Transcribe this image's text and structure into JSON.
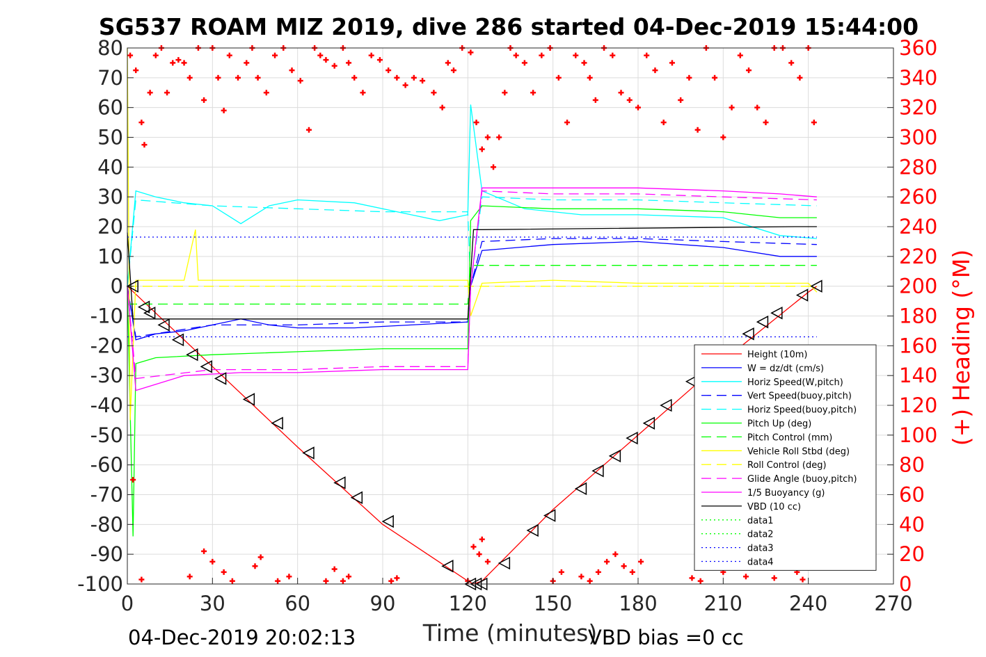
{
  "chart_data": {
    "type": "line",
    "title": "SG537 ROAM MIZ 2019, dive 286 started 04-Dec-2019 15:44:00",
    "xlabel": "Time (minutes)",
    "ylabel_right": "(+) Heading (°M)",
    "footer_left": "04-Dec-2019 20:02:13",
    "footer_right": "VBD bias =0 cc",
    "xlim": [
      0,
      270
    ],
    "ylim": [
      -100,
      80
    ],
    "ylim_right": [
      0,
      360
    ],
    "x_ticks": [
      "0",
      "30",
      "60",
      "90",
      "120",
      "150",
      "180",
      "210",
      "240",
      "270"
    ],
    "y_ticks": [
      "80",
      "70",
      "60",
      "50",
      "40",
      "30",
      "20",
      "10",
      "0",
      "-10",
      "-20",
      "-30",
      "-40",
      "-50",
      "-60",
      "-70",
      "-80",
      "-90",
      "-100"
    ],
    "y_ticks_right": [
      "360",
      "340",
      "320",
      "300",
      "280",
      "260",
      "240",
      "220",
      "200",
      "180",
      "160",
      "140",
      "120",
      "100",
      "80",
      "60",
      "40",
      "20",
      "0"
    ],
    "grid": true,
    "legend_position": "lower-right (inside)",
    "series": [
      {
        "name": "Height (10m)",
        "color": "#ff0000",
        "style": "solid",
        "x": [
          0,
          30,
          60,
          90,
          120,
          122,
          125,
          150,
          180,
          210,
          240,
          243
        ],
        "y": [
          0,
          -27,
          -54,
          -80,
          -99,
          -100,
          -99,
          -75,
          -50,
          -25,
          -2,
          0
        ]
      },
      {
        "name": "W = dz/dt (cm/s)",
        "color": "#0000ff",
        "style": "solid",
        "x": [
          0,
          3,
          10,
          20,
          30,
          40,
          50,
          60,
          80,
          100,
          120,
          121,
          125,
          150,
          180,
          210,
          230,
          243
        ],
        "y": [
          0,
          -18,
          -16,
          -15,
          -13,
          -11,
          -13,
          -14,
          -14,
          -13,
          -12,
          0,
          12,
          14,
          15,
          13,
          10,
          10
        ]
      },
      {
        "name": "Horiz Speed(W,pitch)",
        "color": "#00ffff",
        "style": "solid",
        "x": [
          0,
          3,
          10,
          20,
          30,
          40,
          50,
          60,
          80,
          100,
          110,
          120,
          121,
          125,
          140,
          160,
          180,
          210,
          230,
          243
        ],
        "y": [
          0,
          32,
          30,
          28,
          27,
          21,
          27,
          29,
          28,
          24,
          22,
          24,
          61,
          32,
          26,
          24,
          24,
          23,
          17,
          16
        ]
      },
      {
        "name": "Vert Speed(buoy,pitch)",
        "color": "#0000ff",
        "style": "dashed",
        "x": [
          0,
          3,
          30,
          60,
          90,
          120,
          121,
          125,
          150,
          180,
          210,
          243
        ],
        "y": [
          0,
          -17,
          -13,
          -13,
          -12,
          -12,
          0,
          15,
          16,
          16,
          15,
          14
        ]
      },
      {
        "name": "Horiz Speed(buoy,pitch)",
        "color": "#00ffff",
        "style": "dashed",
        "x": [
          0,
          3,
          30,
          60,
          90,
          120,
          121,
          125,
          150,
          180,
          210,
          243
        ],
        "y": [
          0,
          29,
          27,
          26,
          25,
          25,
          0,
          30,
          29,
          29,
          28,
          27
        ]
      },
      {
        "name": "Pitch Up (deg)",
        "color": "#00ff00",
        "style": "solid",
        "x": [
          0,
          2,
          3,
          10,
          30,
          60,
          90,
          120,
          121,
          125,
          150,
          180,
          210,
          230,
          243
        ],
        "y": [
          0,
          -84,
          -26,
          -24,
          -23,
          -22,
          -21,
          -21,
          22,
          27,
          26,
          26,
          25,
          23,
          23
        ]
      },
      {
        "name": "Pitch Control (mm)",
        "color": "#00ff00",
        "style": "dashed",
        "x": [
          0,
          120,
          121,
          243
        ],
        "y": [
          -6,
          -6,
          7,
          7
        ]
      },
      {
        "name": "Vehicle Roll Stbd (deg)",
        "color": "#ffff00",
        "style": "solid",
        "x": [
          0,
          1,
          3,
          5,
          20,
          24,
          25,
          40,
          60,
          90,
          120,
          121,
          125,
          150,
          180,
          210,
          240,
          243
        ],
        "y": [
          80,
          -45,
          2,
          2,
          2,
          19,
          2,
          2,
          2,
          2,
          2,
          -10,
          1,
          2,
          1,
          1,
          1,
          -2
        ]
      },
      {
        "name": "Roll Control (deg)",
        "color": "#ffff00",
        "style": "dashed",
        "x": [
          0,
          243
        ],
        "y": [
          0,
          0
        ]
      },
      {
        "name": "Glide Angle (buoy,pitch)",
        "color": "#ff00ff",
        "style": "dashed",
        "x": [
          0,
          3,
          30,
          60,
          90,
          120,
          121,
          125,
          150,
          180,
          210,
          243
        ],
        "y": [
          0,
          -31,
          -28,
          -28,
          -27,
          -27,
          0,
          32,
          31,
          31,
          30,
          29
        ]
      },
      {
        "name": "1/5 Buoyancy (g)",
        "color": "#ff00ff",
        "style": "solid",
        "x": [
          0,
          3,
          20,
          40,
          60,
          90,
          120,
          121,
          125,
          150,
          180,
          210,
          230,
          243
        ],
        "y": [
          0,
          -35,
          -30,
          -29,
          -29,
          -28,
          -28,
          0,
          33,
          33,
          33,
          32,
          31,
          30
        ]
      },
      {
        "name": "VBD (10 cc)",
        "color": "#000000",
        "style": "solid",
        "x": [
          0,
          2,
          120,
          122,
          125,
          235,
          243
        ],
        "y": [
          18,
          -11,
          -11,
          19,
          19,
          20,
          20
        ]
      },
      {
        "name": "data1",
        "color": "#00ff00",
        "style": "dotted",
        "x": [],
        "y": []
      },
      {
        "name": "data2",
        "color": "#00ff00",
        "style": "dotted",
        "x": [],
        "y": []
      },
      {
        "name": "data3",
        "color": "#0000ff",
        "style": "dotted",
        "x": [
          0,
          243
        ],
        "y": [
          16.5,
          16.5
        ]
      },
      {
        "name": "data4",
        "color": "#0000ff",
        "style": "dotted",
        "x": [
          0,
          243
        ],
        "y": [
          -17,
          -17
        ]
      }
    ],
    "heading": {
      "name": "Heading",
      "axis": "right",
      "color": "#ff0000",
      "marker": "+",
      "x": [
        1,
        3,
        5,
        6,
        8,
        10,
        12,
        14,
        16,
        18,
        20,
        22,
        25,
        27,
        30,
        32,
        34,
        36,
        39,
        42,
        44,
        46,
        49,
        52,
        55,
        58,
        61,
        64,
        66,
        68,
        70,
        73,
        76,
        78,
        80,
        83,
        86,
        89,
        92,
        95,
        98,
        101,
        104,
        108,
        111,
        113,
        115,
        118,
        121,
        123,
        125,
        127,
        129,
        131,
        133,
        135,
        137,
        140,
        143,
        146,
        149,
        152,
        155,
        158,
        161,
        163,
        165,
        168,
        171,
        174,
        177,
        180,
        183,
        186,
        189,
        192,
        195,
        198,
        201,
        204,
        207,
        210,
        213,
        216,
        219,
        222,
        225,
        228,
        231,
        234,
        237,
        240,
        242
      ],
      "y": [
        355,
        345,
        310,
        295,
        330,
        355,
        360,
        330,
        350,
        352,
        350,
        340,
        360,
        325,
        360,
        340,
        318,
        355,
        340,
        350,
        360,
        340,
        330,
        355,
        360,
        345,
        338,
        305,
        360,
        355,
        352,
        348,
        360,
        350,
        340,
        330,
        355,
        352,
        345,
        340,
        335,
        340,
        338,
        330,
        320,
        350,
        345,
        360,
        357,
        310,
        292,
        300,
        280,
        300,
        330,
        360,
        355,
        350,
        330,
        355,
        360,
        340,
        310,
        355,
        350,
        340,
        325,
        360,
        355,
        330,
        325,
        320,
        355,
        345,
        310,
        350,
        325,
        340,
        305,
        360,
        340,
        300,
        320,
        355,
        345,
        320,
        310,
        360,
        360,
        350,
        340,
        360,
        310
      ]
    },
    "heading_near_zero": {
      "name": "Heading (wrapped)",
      "axis": "right",
      "color": "#ff0000",
      "marker": "+",
      "x": [
        2,
        5,
        22,
        27,
        30,
        34,
        37,
        45,
        47,
        53,
        57,
        70,
        73,
        76,
        78,
        93,
        95,
        120,
        122,
        124,
        125,
        127,
        150,
        153,
        160,
        163,
        166,
        169,
        172,
        175,
        178,
        181,
        199,
        202,
        210,
        213,
        218,
        222,
        228,
        232,
        236,
        238,
        241
      ],
      "y": [
        70,
        3,
        5,
        22,
        15,
        8,
        2,
        12,
        18,
        2,
        5,
        2,
        10,
        2,
        5,
        2,
        4,
        2,
        25,
        20,
        30,
        15,
        2,
        8,
        5,
        2,
        8,
        15,
        20,
        12,
        8,
        15,
        4,
        2,
        8,
        15,
        5,
        12,
        4,
        15,
        8,
        3,
        18
      ]
    },
    "markers": {
      "name": "depth triangles",
      "color": "#000000",
      "x": [
        2,
        6,
        8,
        13,
        18,
        23,
        28,
        33,
        43,
        53,
        64,
        75,
        81,
        92,
        113,
        121,
        123,
        125,
        133,
        143,
        149,
        160,
        166,
        172,
        178,
        184,
        190,
        199,
        219,
        224,
        229,
        238,
        243
      ],
      "y": [
        0,
        -7,
        -9,
        -13,
        -18,
        -23,
        -27,
        -31,
        -38,
        -46,
        -56,
        -66,
        -71,
        -79,
        -94,
        -100,
        -100,
        -100,
        -93,
        -82,
        -77,
        -68,
        -62,
        -57,
        -51,
        -46,
        -40,
        -32,
        -16,
        -12,
        -9,
        -3,
        0
      ]
    }
  }
}
